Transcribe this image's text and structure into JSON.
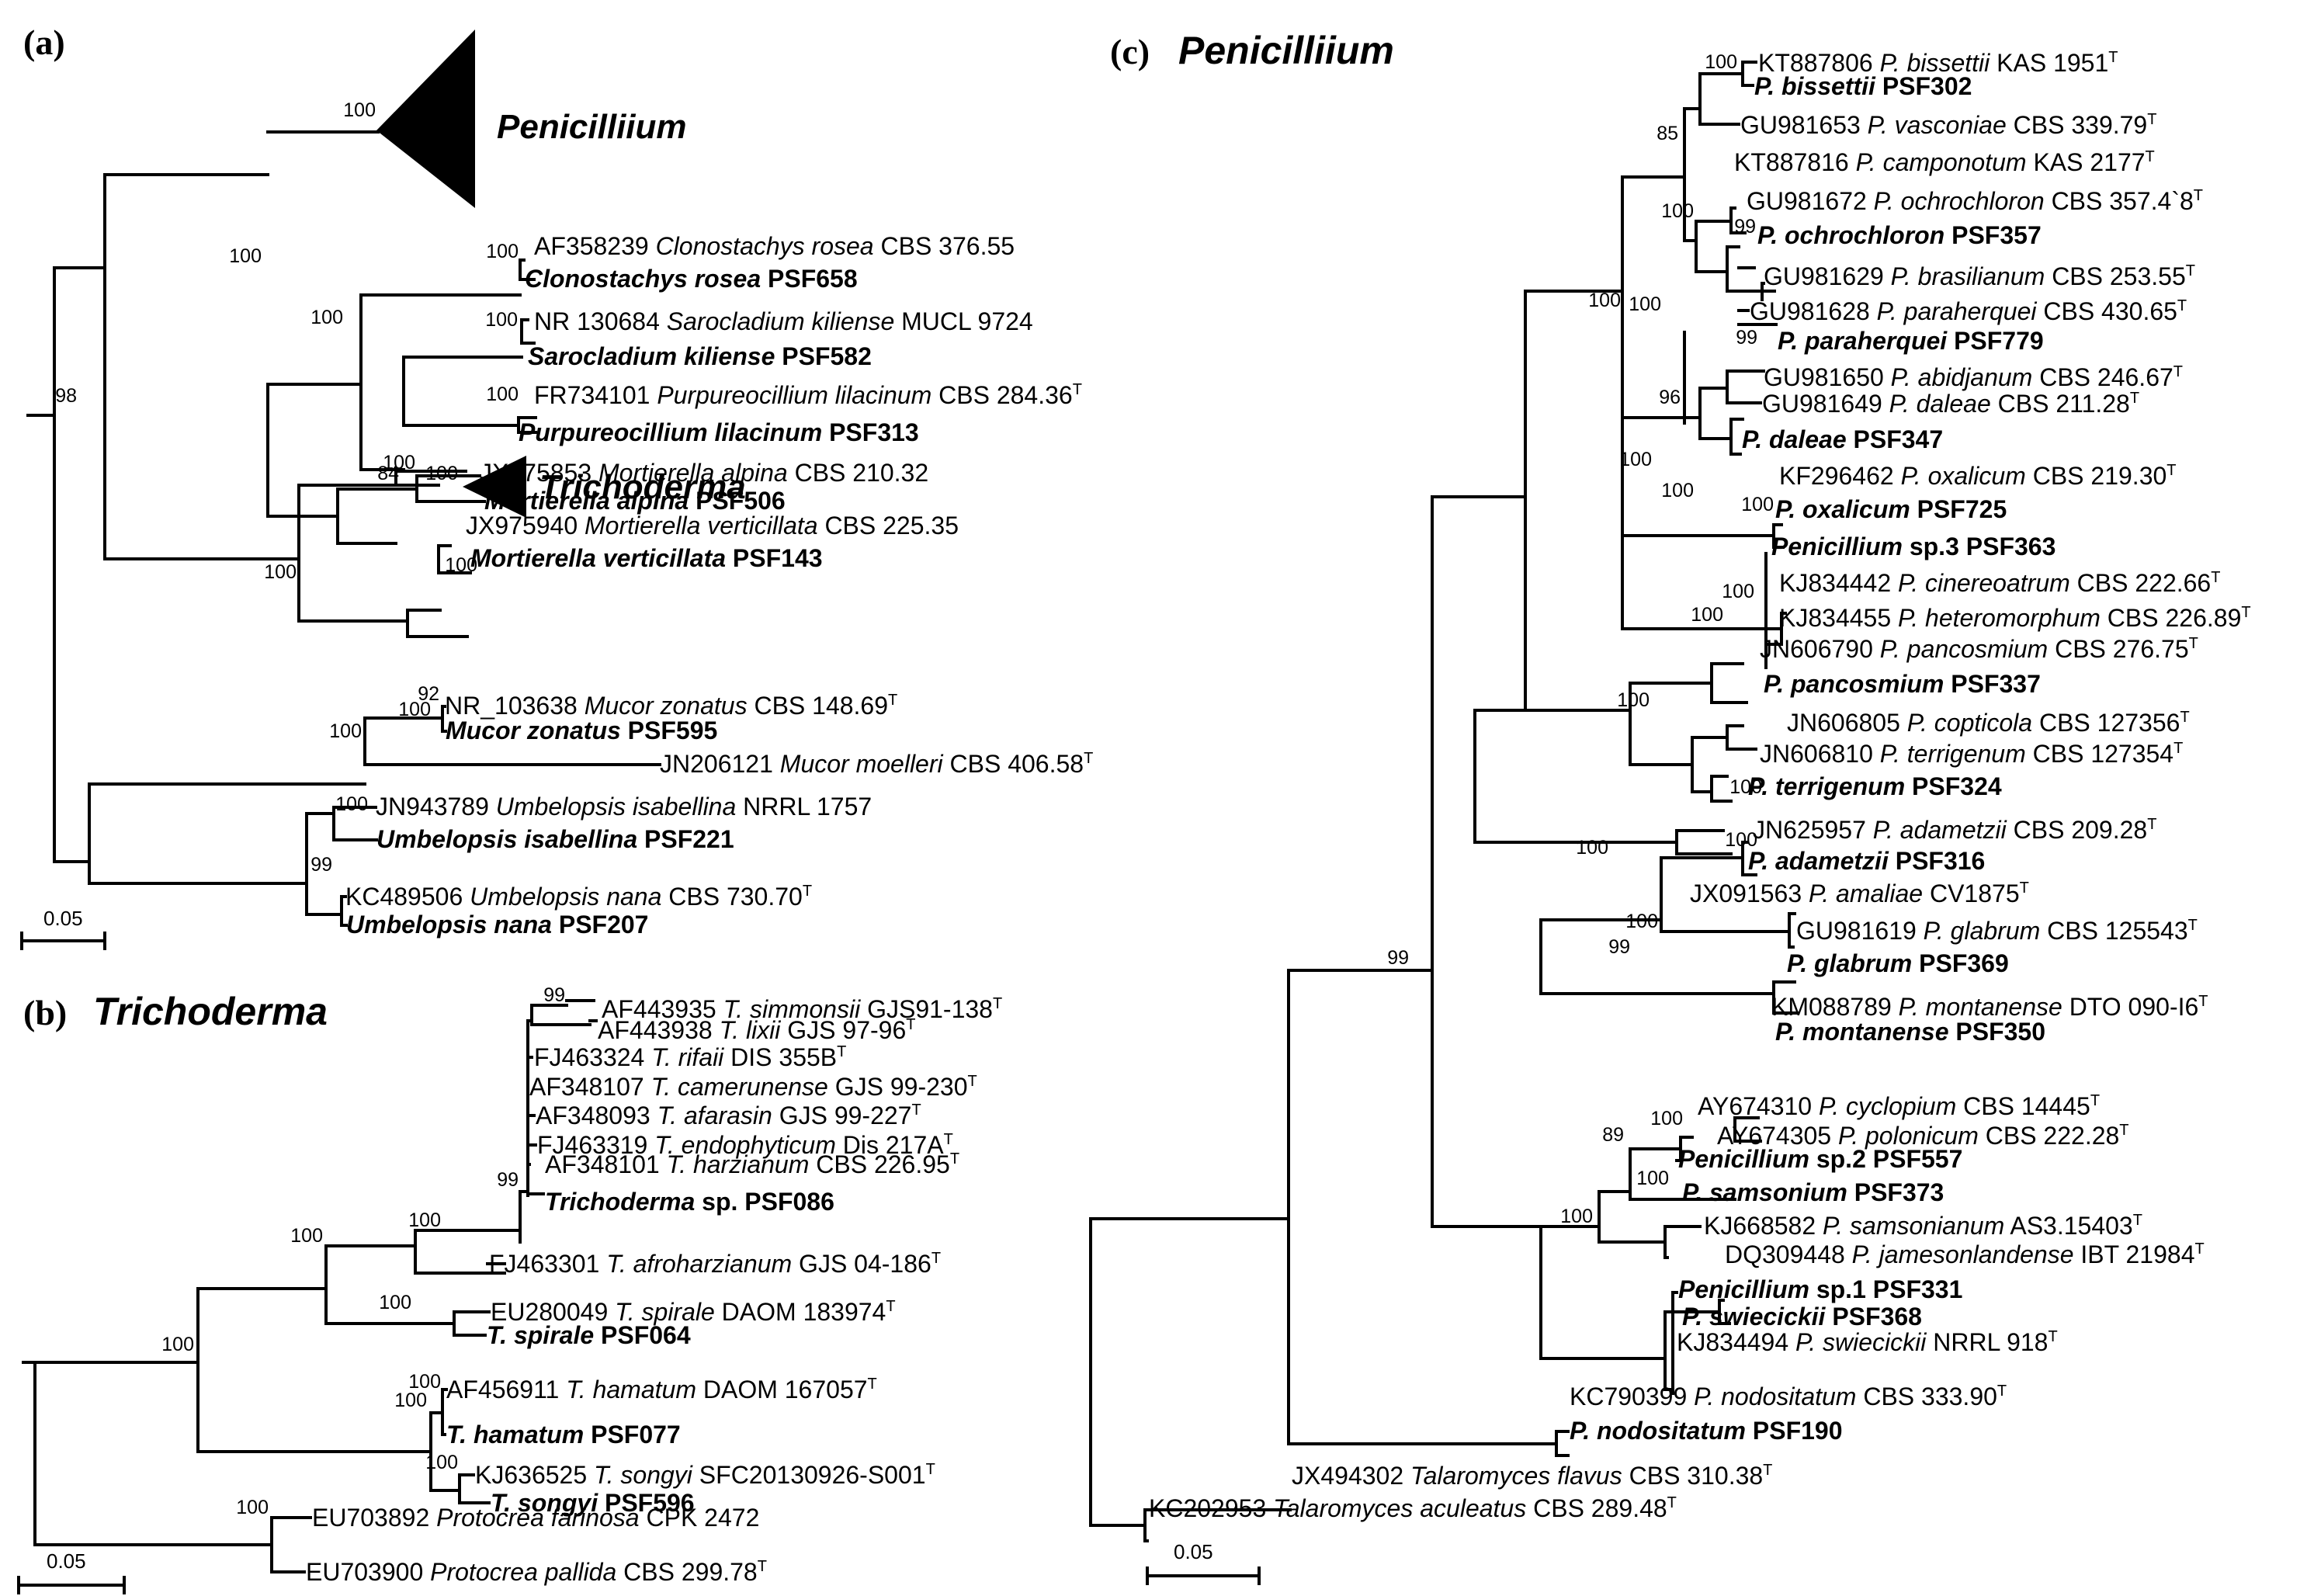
{
  "panel_a": {
    "label": "(a)",
    "collapsed": [
      "Penicilliium",
      "Trichoderma"
    ],
    "tips": [
      [
        "AF358239 ",
        "Clonostachys rosea",
        " CBS 376.55",
        "",
        false
      ],
      [
        "",
        "Clonostachys rosea",
        " PSF658",
        "",
        true
      ],
      [
        "NR 130684 ",
        "Sarocladium kiliense",
        " MUCL 9724",
        "",
        false
      ],
      [
        "",
        "Sarocladium kiliense",
        " PSF582",
        "",
        true
      ],
      [
        "FR734101 ",
        "Purpureocillium lilacinum",
        " CBS 284.36",
        "T",
        false
      ],
      [
        "",
        "Purpureocillium lilacinum",
        " PSF313",
        "",
        true
      ],
      [
        "JX975853 ",
        "Mortierella alpina",
        " CBS 210.32",
        "",
        false
      ],
      [
        "",
        "Mortierella alpina",
        " PSF506",
        "",
        true
      ],
      [
        "JX975940 ",
        "Mortierella verticillata",
        " CBS 225.35",
        "",
        false
      ],
      [
        "",
        "Mortierella verticillata",
        " PSF143",
        "",
        true
      ],
      [
        "NR_103638 ",
        "Mucor zonatus",
        " CBS 148.69",
        "T",
        false
      ],
      [
        "",
        "Mucor zonatus",
        " PSF595",
        "",
        true
      ],
      [
        "JN206121 ",
        "Mucor moelleri",
        " CBS 406.58",
        "T",
        false
      ],
      [
        "JN943789 ",
        "Umbelopsis isabellina",
        " NRRL 1757",
        "",
        false
      ],
      [
        "",
        "Umbelopsis isabellina",
        " PSF221",
        "",
        true
      ],
      [
        "KC489506 ",
        "Umbelopsis nana",
        " CBS 730.70",
        "T",
        false
      ],
      [
        "",
        "Umbelopsis nana",
        " PSF207",
        "",
        true
      ]
    ],
    "bootstraps": [
      "100",
      "100",
      "98",
      "100",
      "100",
      "100",
      "100",
      "84",
      "100",
      "100",
      "100",
      "100",
      "92",
      "100",
      "100",
      "100",
      "99"
    ],
    "scale": "0.05"
  },
  "panel_b": {
    "label": "(b)",
    "title": "Trichoderma",
    "tips": [
      [
        "AF443935 ",
        "T. simmonsii",
        " GJS91-138",
        "T",
        false
      ],
      [
        "AF443938 ",
        "T. lixii",
        " GJS 97-96",
        "T",
        false
      ],
      [
        "FJ463324 ",
        "T. rifaii",
        " DIS 355B",
        "T",
        false
      ],
      [
        "AF348107 ",
        "T. camerunense",
        " GJS 99-230",
        "T",
        false
      ],
      [
        "AF348093 ",
        "T. afarasin",
        " GJS 99-227",
        "T",
        false
      ],
      [
        "FJ463319 ",
        "T. endophyticum",
        " Dis 217A",
        "T",
        false
      ],
      [
        "AF348101 ",
        "T. harzianum",
        " CBS 226.95",
        "T",
        false
      ],
      [
        "",
        "Trichoderma",
        " sp. PSF086",
        "",
        true
      ],
      [
        "FJ463301 ",
        "T. afroharzianum",
        " GJS 04-186",
        "T",
        false
      ],
      [
        "EU280049 ",
        "T. spirale",
        " DAOM 183974",
        "T",
        false
      ],
      [
        "",
        "T. spirale",
        " PSF064",
        "",
        true
      ],
      [
        "AF456911 ",
        "T. hamatum",
        " DAOM 167057",
        "T",
        false
      ],
      [
        "",
        "T. hamatum",
        " PSF077",
        "",
        true
      ],
      [
        "KJ636525 ",
        "T. songyi",
        " SFC20130926-S001",
        "T",
        false
      ],
      [
        "",
        "T. songyi",
        " PSF596",
        "",
        true
      ],
      [
        "EU703892 ",
        "Protocrea farinosa",
        " CPK 2472",
        "",
        false
      ],
      [
        "EU703900 ",
        "Protocrea pallida",
        " CBS 299.78",
        "T",
        false
      ]
    ],
    "bootstraps": [
      "99",
      "99",
      "100",
      "100",
      "100",
      "100",
      "100",
      "100",
      "100",
      "100"
    ],
    "scale": "0.05"
  },
  "panel_c": {
    "label": "(c)",
    "title": "Penicilliium",
    "tips": [
      [
        "KT887806 ",
        "P. bissettii",
        " KAS 1951",
        "T",
        false
      ],
      [
        "",
        "P. bissettii",
        " PSF302",
        "",
        true
      ],
      [
        "GU981653 ",
        "P. vasconiae",
        " CBS 339.79",
        "T",
        false
      ],
      [
        "KT887816 ",
        "P. camponotum",
        " KAS 2177",
        "T",
        false
      ],
      [
        "GU981672 ",
        "P. ochrochloron",
        " CBS 357.4`8",
        "T",
        false
      ],
      [
        "",
        "P. ochrochloron",
        " PSF357",
        "",
        true
      ],
      [
        "GU981629 ",
        "P. brasilianum",
        " CBS 253.55",
        "T",
        false
      ],
      [
        "GU981628 ",
        "P. paraherquei",
        " CBS 430.65",
        "T",
        false
      ],
      [
        "",
        "P. paraherquei",
        " PSF779",
        "",
        true
      ],
      [
        "GU981650 ",
        "P. abidjanum",
        " CBS 246.67",
        "T",
        false
      ],
      [
        "GU981649 ",
        "P. daleae",
        " CBS 211.28",
        "T",
        false
      ],
      [
        "",
        "P. daleae",
        " PSF347",
        "",
        true
      ],
      [
        "KF296462 ",
        "P. oxalicum",
        " CBS 219.30",
        "T",
        false
      ],
      [
        "",
        "P. oxalicum",
        " PSF725",
        "",
        true
      ],
      [
        "",
        "Penicillium",
        " sp.3 PSF363",
        "",
        true
      ],
      [
        "KJ834442 ",
        "P. cinereoatrum",
        " CBS 222.66",
        "T",
        false
      ],
      [
        "KJ834455 ",
        "P. heteromorphum",
        " CBS 226.89",
        "T",
        false
      ],
      [
        "JN606790 ",
        "P. pancosmium",
        " CBS 276.75",
        "T",
        false
      ],
      [
        "",
        "P. pancosmium",
        " PSF337",
        "",
        true
      ],
      [
        "JN606805 ",
        "P. copticola",
        " CBS 127356",
        "T",
        false
      ],
      [
        "JN606810 ",
        "P. terrigenum",
        " CBS 127354",
        "T",
        false
      ],
      [
        "",
        "P. terrigenum",
        " PSF324",
        "",
        true
      ],
      [
        "JN625957 ",
        "P. adametzii",
        " CBS 209.28",
        "T",
        false
      ],
      [
        "",
        "P. adametzii",
        " PSF316",
        "",
        true
      ],
      [
        "JX091563 ",
        "P. amaliae",
        " CV1875",
        "T",
        false
      ],
      [
        "GU981619 ",
        "P. glabrum",
        " CBS 125543",
        "T",
        false
      ],
      [
        "",
        "P. glabrum",
        " PSF369",
        "",
        true
      ],
      [
        "KM088789 ",
        "P. montanense",
        " DTO 090-I6",
        "T",
        false
      ],
      [
        "",
        "P. montanense",
        " PSF350",
        "",
        true
      ],
      [
        "AY674310 ",
        "P. cyclopium",
        " CBS 14445",
        "T",
        false
      ],
      [
        "AY674305 ",
        "P. polonicum",
        " CBS 222.28",
        "T",
        false
      ],
      [
        "",
        "Penicillium",
        " sp.2 PSF557",
        "",
        true
      ],
      [
        "",
        "P. samsonium",
        " PSF373",
        "",
        true
      ],
      [
        "KJ668582 ",
        "P. samsonianum",
        " AS3.15403",
        "T",
        false
      ],
      [
        "DQ309448 ",
        "P. jamesonlandense",
        " IBT 21984",
        "T",
        false
      ],
      [
        "",
        "Penicillium",
        " sp.1 PSF331",
        "",
        true
      ],
      [
        "",
        "P. swiecickii",
        " PSF368",
        "",
        true
      ],
      [
        "KJ834494 ",
        "P. swiecickii",
        " NRRL 918",
        "T",
        false
      ],
      [
        "KC790399 ",
        "P. nodositatum",
        " CBS 333.90",
        "T",
        false
      ],
      [
        "",
        "P. nodositatum",
        " PSF190",
        "",
        true
      ],
      [
        "JX494302 ",
        "Talaromyces flavus",
        " CBS 310.38",
        "T",
        false
      ],
      [
        "KC202953 ",
        "Talaromyces aculeatus",
        " CBS 289.48",
        "T",
        false
      ]
    ],
    "bootstraps": [
      "100",
      "85",
      "100",
      "99",
      "100",
      "99",
      "100",
      "96",
      "100",
      "100",
      "100",
      "100",
      "100",
      "100",
      "100",
      "100",
      "100",
      "99",
      "100",
      "99",
      "100",
      "89",
      "100",
      "100"
    ],
    "scale": "0.05"
  }
}
